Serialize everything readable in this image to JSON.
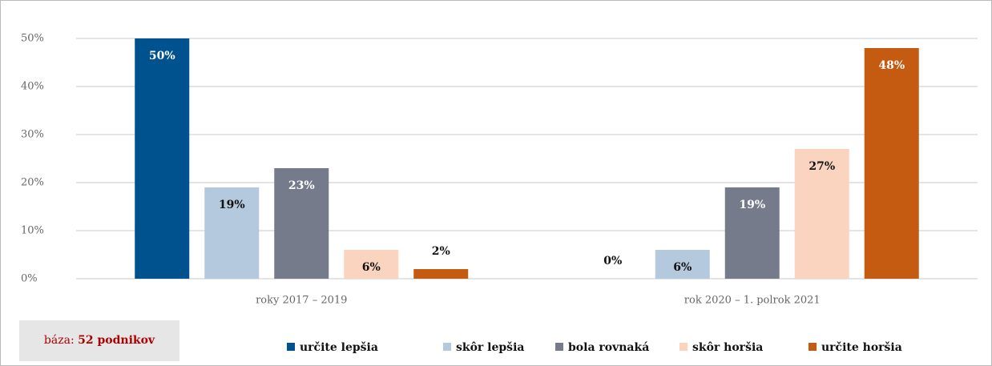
{
  "chart_data": {
    "type": "bar",
    "categories": [
      "roky 2017 – 2019",
      "rok 2020 – 1. polrok 2021"
    ],
    "series": [
      {
        "name": "určite lepšia",
        "color": "#00528f",
        "values": [
          50,
          0
        ],
        "value_labels": [
          "50%",
          "0%"
        ]
      },
      {
        "name": "skôr lepšia",
        "color": "#b4c9de",
        "values": [
          19,
          6
        ],
        "value_labels": [
          "19%",
          "6%"
        ]
      },
      {
        "name": "bola rovnaká",
        "color": "#767b8c",
        "values": [
          23,
          19
        ],
        "value_labels": [
          "23%",
          "19%"
        ]
      },
      {
        "name": "skôr horšia",
        "color": "#fad4bf",
        "values": [
          6,
          27
        ],
        "value_labels": [
          "6%",
          "27%"
        ]
      },
      {
        "name": "určite horšia",
        "color": "#c55a11",
        "values": [
          2,
          48
        ],
        "value_labels": [
          "2%",
          "48%"
        ]
      }
    ],
    "ylim": [
      0,
      50
    ],
    "yticks": [
      {
        "value": 0,
        "label": "0%"
      },
      {
        "value": 10,
        "label": "10%"
      },
      {
        "value": 20,
        "label": "20%"
      },
      {
        "value": 30,
        "label": "30%"
      },
      {
        "value": 40,
        "label": "40%"
      },
      {
        "value": 50,
        "label": "50%"
      }
    ],
    "grid": true,
    "legend": "bottom",
    "note": {
      "label": "báza:",
      "value": "52 podnikov"
    }
  }
}
